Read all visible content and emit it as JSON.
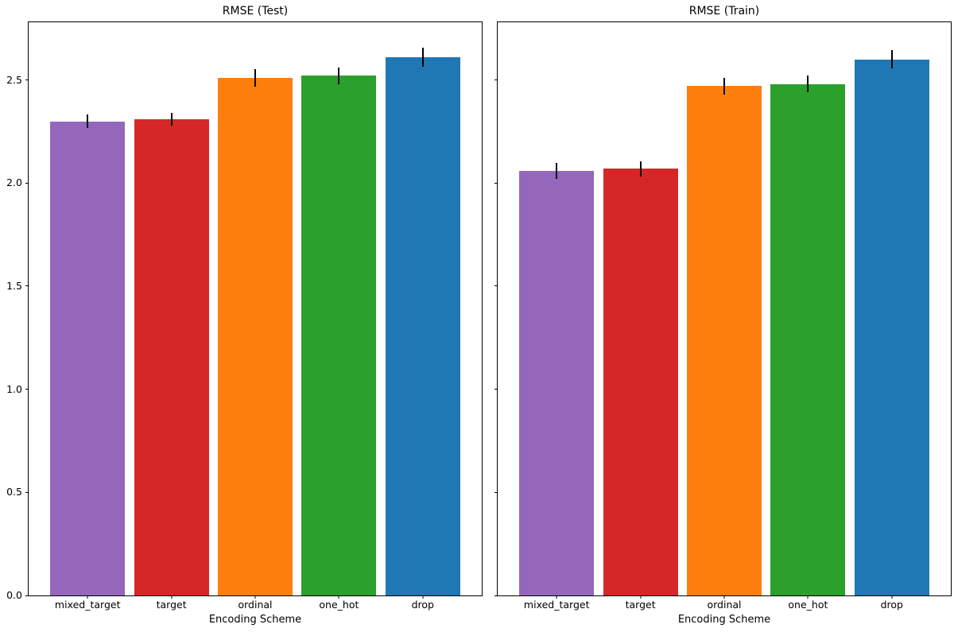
{
  "figure": {
    "background": "#ffffff",
    "error_bar_color": "#000000",
    "axes_edge_color": "#000000"
  },
  "chart_data": [
    {
      "type": "bar",
      "title": "RMSE (Test)",
      "xlabel": "Encoding Scheme",
      "ylabel": "",
      "categories": [
        "mixed_target",
        "target",
        "ordinal",
        "one_hot",
        "drop"
      ],
      "values": [
        2.3,
        2.31,
        2.51,
        2.52,
        2.61
      ],
      "errors": [
        0.034,
        0.031,
        0.042,
        0.042,
        0.046
      ],
      "bar_colors": [
        "#9467bd",
        "#d62728",
        "#ff7f0e",
        "#2ca02c",
        "#1f77b4"
      ],
      "ylim": [
        0,
        2.78
      ],
      "yticks": [
        0,
        0.5,
        1,
        1.5,
        2,
        2.5
      ],
      "ytick_labels": [
        "0.0",
        "0.5",
        "1.0",
        "1.5",
        "2.0",
        "2.5"
      ],
      "show_ytick_labels": true,
      "grid": false,
      "legend": "none"
    },
    {
      "type": "bar",
      "title": "RMSE (Train)",
      "xlabel": "Encoding Scheme",
      "ylabel": "",
      "categories": [
        "mixed_target",
        "target",
        "ordinal",
        "one_hot",
        "drop"
      ],
      "values": [
        2.06,
        2.07,
        2.47,
        2.48,
        2.6
      ],
      "errors": [
        0.038,
        0.037,
        0.04,
        0.04,
        0.045
      ],
      "bar_colors": [
        "#9467bd",
        "#d62728",
        "#ff7f0e",
        "#2ca02c",
        "#1f77b4"
      ],
      "ylim": [
        0,
        2.78
      ],
      "yticks": [
        0,
        0.5,
        1,
        1.5,
        2,
        2.5
      ],
      "ytick_labels": [
        "0.0",
        "0.5",
        "1.0",
        "1.5",
        "2.0",
        "2.5"
      ],
      "show_ytick_labels": false,
      "grid": false,
      "legend": "none"
    }
  ]
}
